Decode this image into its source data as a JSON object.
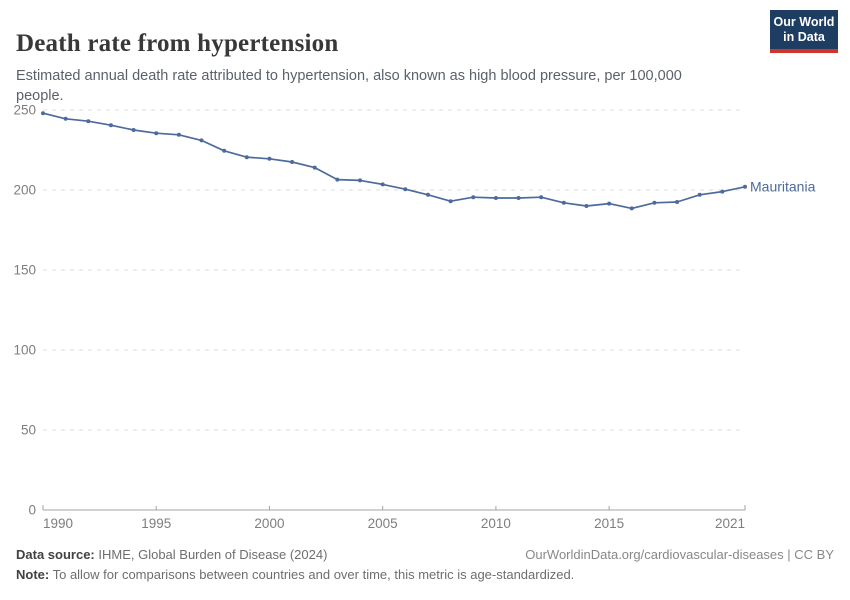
{
  "header": {
    "title": "Death rate from hypertension",
    "subtitle": "Estimated annual death rate attributed to hypertension, also known as high blood pressure, per 100,000 people.",
    "logo_line1": "Our World",
    "logo_line2": "in Data"
  },
  "chart_data": {
    "type": "line",
    "title": "Death rate from hypertension",
    "xlabel": "",
    "ylabel": "",
    "x": [
      1990,
      1991,
      1992,
      1993,
      1994,
      1995,
      1996,
      1997,
      1998,
      1999,
      2000,
      2001,
      2002,
      2003,
      2004,
      2005,
      2006,
      2007,
      2008,
      2009,
      2010,
      2011,
      2012,
      2013,
      2014,
      2015,
      2016,
      2017,
      2018,
      2019,
      2020,
      2021
    ],
    "series": [
      {
        "name": "Mauritania",
        "color": "#4C6A9C",
        "values": [
          248,
          244.5,
          243,
          240.5,
          237.5,
          235.5,
          234.5,
          231,
          224.5,
          220.5,
          219.5,
          217.5,
          214,
          206.5,
          206,
          203.5,
          200.5,
          197,
          193,
          195.5,
          195,
          195,
          195.5,
          192,
          190,
          191.5,
          188.5,
          192,
          192.5,
          197,
          199,
          202
        ]
      }
    ],
    "xlim": [
      1990,
      2021
    ],
    "ylim": [
      0,
      250
    ],
    "yticks": [
      0,
      50,
      100,
      150,
      200,
      250
    ],
    "xticks": [
      1990,
      1995,
      2000,
      2005,
      2010,
      2015,
      2021
    ],
    "grid": "horizontal-dashed",
    "legend_position": "end-of-line-label",
    "entity_label": "Mauritania"
  },
  "colors": {
    "line": "#4C6A9C",
    "gridline": "#dcdcdc",
    "axis": "#a3a3a3",
    "tick_label": "#7e7e7e",
    "logo_bg": "#1d3d63",
    "logo_red": "#d0342c"
  },
  "footer": {
    "datasource_label": "Data source:",
    "datasource_text": " IHME, Global Burden of Disease (2024)",
    "note_label": "Note:",
    "note_text": " To allow for comparisons between countries and over time, this metric is age-standardized.",
    "link": "OurWorldinData.org/cardiovascular-diseases | CC BY"
  }
}
